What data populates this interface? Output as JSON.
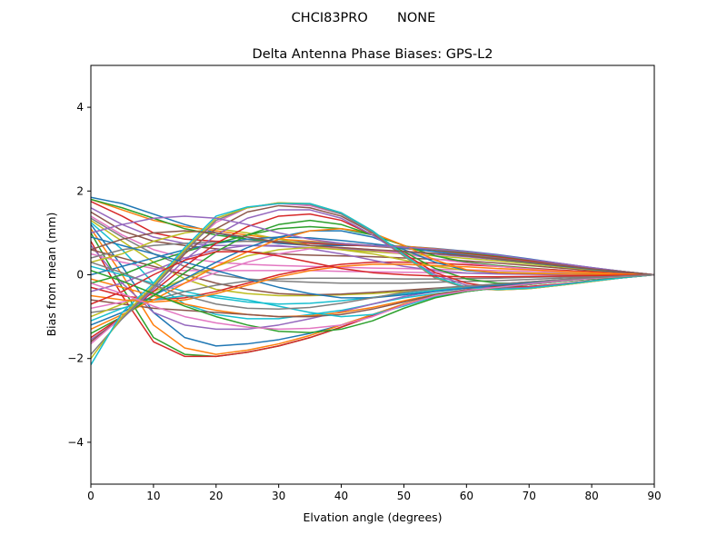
{
  "figure": {
    "suptitle": "CHCI83PRO       NONE"
  },
  "chart_data": {
    "type": "line",
    "title": "Delta Antenna Phase Biases: GPS-L2",
    "xlabel": "Elvation angle (degrees)",
    "ylabel": "Bias from mean (mm)",
    "xlim": [
      0,
      90
    ],
    "ylim": [
      -5,
      5
    ],
    "xticks": [
      0,
      10,
      20,
      30,
      40,
      50,
      60,
      70,
      80,
      90
    ],
    "yticks": [
      -4,
      -2,
      0,
      2,
      4
    ],
    "grid": false,
    "legend": "none",
    "x": [
      0,
      5,
      10,
      15,
      20,
      25,
      30,
      35,
      40,
      45,
      50,
      55,
      60,
      65,
      70,
      75,
      80,
      85,
      90
    ],
    "colors": [
      "#1f77b4",
      "#ff7f0e",
      "#2ca02c",
      "#d62728",
      "#9467bd",
      "#8c564b",
      "#e377c2",
      "#7f7f7f",
      "#bcbd22",
      "#17becf"
    ],
    "series": [
      {
        "values": [
          1.85,
          1.7,
          1.45,
          1.2,
          1.0,
          0.85,
          0.75,
          0.7,
          0.7,
          0.7,
          0.68,
          0.63,
          0.56,
          0.48,
          0.38,
          0.27,
          0.17,
          0.08,
          0.0
        ]
      },
      {
        "values": [
          1.8,
          1.55,
          1.3,
          1.15,
          1.05,
          0.95,
          0.85,
          0.8,
          0.75,
          0.7,
          0.68,
          0.62,
          0.55,
          0.46,
          0.36,
          0.26,
          0.16,
          0.08,
          0.0
        ]
      },
      {
        "values": [
          1.8,
          1.6,
          1.35,
          1.1,
          0.95,
          0.85,
          0.8,
          0.75,
          0.72,
          0.7,
          0.66,
          0.6,
          0.52,
          0.44,
          0.35,
          0.25,
          0.16,
          0.08,
          0.0
        ]
      },
      {
        "values": [
          1.75,
          1.4,
          1.0,
          0.85,
          0.8,
          0.8,
          0.78,
          0.75,
          0.72,
          0.68,
          0.63,
          0.57,
          0.5,
          0.42,
          0.33,
          0.24,
          0.15,
          0.07,
          0.0
        ]
      },
      {
        "values": [
          1.6,
          1.2,
          0.9,
          0.75,
          0.7,
          0.7,
          0.68,
          0.65,
          0.62,
          0.58,
          0.54,
          0.49,
          0.43,
          0.36,
          0.29,
          0.21,
          0.13,
          0.06,
          0.0
        ]
      },
      {
        "values": [
          1.5,
          1.05,
          0.8,
          0.7,
          0.62,
          0.55,
          0.5,
          0.47,
          0.45,
          0.43,
          0.4,
          0.37,
          0.33,
          0.28,
          0.22,
          0.16,
          0.1,
          0.05,
          0.0
        ]
      },
      {
        "values": [
          1.4,
          0.95,
          0.6,
          0.4,
          0.3,
          0.25,
          0.22,
          0.2,
          0.18,
          0.16,
          0.15,
          0.13,
          0.12,
          0.1,
          0.08,
          0.06,
          0.04,
          0.02,
          0.0
        ]
      },
      {
        "values": [
          1.35,
          0.9,
          0.5,
          0.2,
          0.0,
          -0.1,
          -0.15,
          -0.18,
          -0.2,
          -0.2,
          -0.2,
          -0.18,
          -0.16,
          -0.14,
          -0.11,
          -0.08,
          -0.05,
          -0.02,
          0.0
        ]
      },
      {
        "values": [
          1.3,
          0.8,
          0.3,
          -0.1,
          -0.35,
          -0.45,
          -0.5,
          -0.5,
          -0.48,
          -0.45,
          -0.4,
          -0.35,
          -0.3,
          -0.25,
          -0.2,
          -0.14,
          -0.09,
          -0.04,
          0.0
        ]
      },
      {
        "values": [
          1.25,
          0.6,
          -0.2,
          -0.7,
          -0.95,
          -1.05,
          -1.05,
          -0.95,
          -0.85,
          -0.7,
          -0.55,
          -0.45,
          -0.36,
          -0.28,
          -0.21,
          -0.15,
          -0.09,
          -0.04,
          0.0
        ]
      },
      {
        "values": [
          1.2,
          0.2,
          -0.9,
          -1.5,
          -1.7,
          -1.65,
          -1.55,
          -1.4,
          -1.2,
          -0.95,
          -0.7,
          -0.5,
          -0.38,
          -0.3,
          -0.22,
          -0.15,
          -0.09,
          -0.04,
          0.0
        ]
      },
      {
        "values": [
          1.1,
          0.0,
          -1.2,
          -1.75,
          -1.9,
          -1.8,
          -1.65,
          -1.45,
          -1.2,
          -0.95,
          -0.7,
          -0.5,
          -0.38,
          -0.3,
          -0.22,
          -0.15,
          -0.09,
          -0.04,
          0.0
        ]
      },
      {
        "values": [
          1.0,
          -0.3,
          -1.5,
          -1.9,
          -1.95,
          -1.85,
          -1.7,
          -1.5,
          -1.25,
          -0.98,
          -0.72,
          -0.52,
          -0.4,
          -0.31,
          -0.23,
          -0.16,
          -0.1,
          -0.05,
          0.0
        ]
      },
      {
        "values": [
          0.8,
          -0.5,
          -1.6,
          -1.95,
          -1.95,
          -1.85,
          -1.7,
          -1.5,
          -1.25,
          -0.98,
          -0.72,
          -0.52,
          -0.4,
          -0.31,
          -0.23,
          -0.16,
          -0.1,
          -0.05,
          0.0
        ]
      },
      {
        "values": [
          0.7,
          -0.2,
          -0.9,
          -1.2,
          -1.3,
          -1.3,
          -1.2,
          -1.05,
          -0.88,
          -0.7,
          -0.52,
          -0.4,
          -0.32,
          -0.25,
          -0.19,
          -0.13,
          -0.08,
          -0.04,
          0.0
        ]
      },
      {
        "values": [
          0.6,
          0.4,
          0.2,
          0.0,
          -0.2,
          -0.35,
          -0.45,
          -0.48,
          -0.46,
          -0.42,
          -0.37,
          -0.32,
          -0.27,
          -0.22,
          -0.17,
          -0.12,
          -0.07,
          -0.03,
          0.0
        ]
      },
      {
        "values": [
          0.5,
          0.3,
          0.15,
          0.1,
          0.1,
          0.1,
          0.1,
          0.1,
          0.08,
          0.07,
          0.06,
          0.05,
          0.04,
          0.03,
          0.02,
          0.02,
          0.01,
          0.0,
          0.0
        ]
      },
      {
        "values": [
          0.4,
          0.6,
          0.7,
          0.75,
          0.78,
          0.8,
          0.8,
          0.78,
          0.74,
          0.69,
          0.63,
          0.56,
          0.48,
          0.4,
          0.31,
          0.23,
          0.14,
          0.07,
          0.0
        ]
      },
      {
        "values": [
          0.3,
          0.5,
          0.8,
          1.0,
          1.1,
          1.0,
          0.85,
          0.7,
          0.6,
          0.55,
          0.5,
          0.45,
          0.39,
          0.33,
          0.26,
          0.19,
          0.12,
          0.06,
          0.0
        ]
      },
      {
        "values": [
          0.2,
          0.0,
          -0.2,
          -0.4,
          -0.55,
          -0.65,
          -0.7,
          -0.68,
          -0.62,
          -0.54,
          -0.45,
          -0.37,
          -0.3,
          -0.24,
          -0.18,
          -0.13,
          -0.08,
          -0.04,
          0.0
        ]
      },
      {
        "values": [
          0.0,
          0.2,
          0.4,
          0.6,
          0.75,
          0.85,
          0.9,
          0.88,
          0.82,
          0.74,
          0.65,
          0.55,
          0.46,
          0.37,
          0.29,
          0.21,
          0.13,
          0.06,
          0.0
        ]
      },
      {
        "values": [
          -0.1,
          -0.3,
          -0.5,
          -0.7,
          -0.85,
          -0.95,
          -1.0,
          -0.98,
          -0.9,
          -0.78,
          -0.62,
          -0.47,
          -0.36,
          -0.28,
          -0.21,
          -0.15,
          -0.09,
          -0.04,
          0.0
        ]
      },
      {
        "values": [
          -0.2,
          0.0,
          0.3,
          0.55,
          0.75,
          0.95,
          1.1,
          1.15,
          1.1,
          0.95,
          0.7,
          0.45,
          0.3,
          0.22,
          0.16,
          0.11,
          0.07,
          0.03,
          0.0
        ]
      },
      {
        "values": [
          -0.3,
          -0.5,
          -0.6,
          -0.55,
          -0.4,
          -0.2,
          0.0,
          0.15,
          0.25,
          0.3,
          0.3,
          0.28,
          0.24,
          0.2,
          0.15,
          0.11,
          0.07,
          0.03,
          0.0
        ]
      },
      {
        "values": [
          -0.4,
          -0.2,
          0.1,
          0.4,
          0.6,
          0.7,
          0.7,
          0.62,
          0.5,
          0.35,
          0.2,
          0.1,
          0.04,
          0.02,
          0.01,
          0.0,
          0.0,
          0.0,
          0.0
        ]
      },
      {
        "values": [
          -0.6,
          -0.7,
          -0.8,
          -0.85,
          -0.9,
          -0.95,
          -1.0,
          -1.0,
          -0.95,
          -0.82,
          -0.65,
          -0.48,
          -0.36,
          -0.27,
          -0.2,
          -0.14,
          -0.08,
          -0.04,
          0.0
        ]
      },
      {
        "values": [
          -0.8,
          -0.65,
          -0.45,
          -0.2,
          0.05,
          0.3,
          0.5,
          0.62,
          0.65,
          0.6,
          0.5,
          0.38,
          0.28,
          0.2,
          0.14,
          0.09,
          0.05,
          0.02,
          0.0
        ]
      },
      {
        "values": [
          -0.9,
          -0.8,
          -0.6,
          -0.4,
          -0.25,
          -0.15,
          -0.1,
          -0.08,
          -0.08,
          -0.09,
          -0.1,
          -0.1,
          -0.09,
          -0.08,
          -0.06,
          -0.05,
          -0.03,
          -0.01,
          0.0
        ]
      },
      {
        "values": [
          -1.0,
          -0.7,
          -0.4,
          -0.1,
          0.2,
          0.45,
          0.6,
          0.65,
          0.6,
          0.5,
          0.35,
          0.2,
          0.1,
          0.06,
          0.04,
          0.03,
          0.02,
          0.01,
          0.0
        ]
      },
      {
        "values": [
          -1.1,
          -0.8,
          -0.6,
          -0.5,
          -0.5,
          -0.6,
          -0.75,
          -0.9,
          -1.0,
          -0.95,
          -0.75,
          -0.52,
          -0.4,
          -0.31,
          -0.23,
          -0.16,
          -0.1,
          -0.05,
          0.0
        ]
      },
      {
        "values": [
          -1.2,
          -0.9,
          -0.5,
          -0.1,
          0.3,
          0.65,
          0.9,
          1.05,
          1.05,
          0.9,
          0.6,
          0.3,
          0.1,
          0.05,
          0.03,
          0.02,
          0.01,
          0.0,
          0.0
        ]
      },
      {
        "values": [
          -1.3,
          -0.95,
          -0.6,
          -0.2,
          0.2,
          0.55,
          0.85,
          1.05,
          1.1,
          1.0,
          0.7,
          0.35,
          0.12,
          0.05,
          0.03,
          0.02,
          0.01,
          0.0,
          0.0
        ]
      },
      {
        "values": [
          -1.4,
          -1.0,
          -0.5,
          0.05,
          0.55,
          0.95,
          1.2,
          1.3,
          1.2,
          0.95,
          0.55,
          0.15,
          -0.1,
          -0.2,
          -0.2,
          -0.16,
          -0.1,
          -0.05,
          0.0
        ]
      },
      {
        "values": [
          -1.5,
          -1.0,
          -0.4,
          0.2,
          0.75,
          1.15,
          1.4,
          1.45,
          1.3,
          0.95,
          0.5,
          0.05,
          -0.2,
          -0.3,
          -0.28,
          -0.22,
          -0.14,
          -0.07,
          0.0
        ]
      },
      {
        "values": [
          -1.55,
          -1.05,
          -0.35,
          0.35,
          0.95,
          1.35,
          1.55,
          1.55,
          1.35,
          0.95,
          0.45,
          0.0,
          -0.25,
          -0.33,
          -0.3,
          -0.23,
          -0.15,
          -0.07,
          0.0
        ]
      },
      {
        "values": [
          -1.6,
          -1.0,
          -0.3,
          0.5,
          1.1,
          1.5,
          1.65,
          1.6,
          1.4,
          1.0,
          0.45,
          -0.05,
          -0.3,
          -0.35,
          -0.32,
          -0.24,
          -0.15,
          -0.07,
          0.0
        ]
      },
      {
        "values": [
          -1.65,
          -1.0,
          -0.25,
          0.6,
          1.25,
          1.6,
          1.7,
          1.65,
          1.45,
          1.02,
          0.45,
          -0.08,
          -0.32,
          -0.36,
          -0.33,
          -0.25,
          -0.16,
          -0.07,
          0.0
        ]
      },
      {
        "values": [
          -1.9,
          -1.05,
          -0.3,
          0.55,
          1.3,
          1.6,
          1.72,
          1.68,
          1.45,
          1.02,
          0.45,
          -0.08,
          -0.32,
          -0.36,
          -0.33,
          -0.25,
          -0.16,
          -0.07,
          0.0
        ]
      },
      {
        "values": [
          -2.0,
          -1.0,
          -0.25,
          0.6,
          1.35,
          1.6,
          1.72,
          1.7,
          1.48,
          1.05,
          0.47,
          -0.06,
          -0.3,
          -0.36,
          -0.33,
          -0.25,
          -0.16,
          -0.07,
          0.0
        ]
      },
      {
        "values": [
          -2.15,
          -0.9,
          -0.2,
          0.65,
          1.4,
          1.62,
          1.7,
          1.7,
          1.48,
          1.05,
          0.48,
          -0.05,
          -0.3,
          -0.35,
          -0.32,
          -0.24,
          -0.15,
          -0.07,
          0.0
        ]
      },
      {
        "values": [
          0.9,
          0.7,
          0.5,
          0.3,
          0.1,
          -0.1,
          -0.3,
          -0.45,
          -0.55,
          -0.55,
          -0.48,
          -0.4,
          -0.32,
          -0.25,
          -0.19,
          -0.13,
          -0.08,
          -0.04,
          0.0
        ]
      },
      {
        "values": [
          -0.5,
          -0.6,
          -0.65,
          -0.6,
          -0.45,
          -0.25,
          -0.05,
          0.1,
          0.2,
          0.25,
          0.25,
          0.22,
          0.19,
          0.15,
          0.12,
          0.08,
          0.05,
          0.02,
          0.0
        ]
      },
      {
        "values": [
          0.1,
          -0.15,
          -0.45,
          -0.75,
          -1.0,
          -1.2,
          -1.35,
          -1.38,
          -1.3,
          -1.1,
          -0.8,
          -0.55,
          -0.4,
          -0.31,
          -0.23,
          -0.16,
          -0.1,
          -0.05,
          0.0
        ]
      },
      {
        "values": [
          -0.7,
          -0.4,
          0.0,
          0.35,
          0.55,
          0.55,
          0.45,
          0.3,
          0.15,
          0.05,
          0.0,
          -0.03,
          -0.05,
          -0.05,
          -0.04,
          -0.03,
          -0.02,
          -0.01,
          0.0
        ]
      },
      {
        "values": [
          1.0,
          1.2,
          1.35,
          1.4,
          1.35,
          1.2,
          1.0,
          0.85,
          0.75,
          0.7,
          0.66,
          0.61,
          0.55,
          0.47,
          0.37,
          0.27,
          0.17,
          0.08,
          0.0
        ]
      },
      {
        "values": [
          0.6,
          0.85,
          1.0,
          1.05,
          1.0,
          0.9,
          0.78,
          0.7,
          0.65,
          0.6,
          0.56,
          0.51,
          0.45,
          0.38,
          0.3,
          0.22,
          0.14,
          0.07,
          0.0
        ]
      },
      {
        "values": [
          -0.2,
          -0.45,
          -0.75,
          -1.0,
          -1.15,
          -1.25,
          -1.3,
          -1.28,
          -1.2,
          -1.0,
          -0.72,
          -0.5,
          -0.38,
          -0.3,
          -0.22,
          -0.15,
          -0.09,
          -0.04,
          0.0
        ]
      },
      {
        "values": [
          0.3,
          0.05,
          -0.25,
          -0.5,
          -0.7,
          -0.8,
          -0.82,
          -0.78,
          -0.68,
          -0.55,
          -0.42,
          -0.33,
          -0.27,
          -0.22,
          -0.17,
          -0.12,
          -0.07,
          -0.03,
          0.0
        ]
      }
    ]
  }
}
